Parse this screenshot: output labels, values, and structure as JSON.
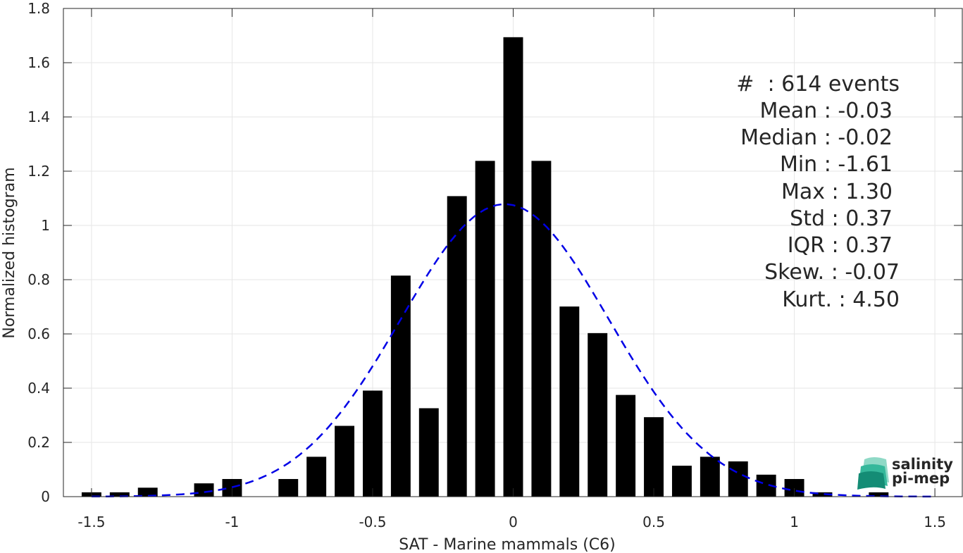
{
  "chart_data": {
    "type": "bar",
    "xlabel": "SAT - Marine mammals (C6)",
    "ylabel": "Normalized histogram",
    "xlim": [
      -1.6,
      1.6
    ],
    "ylim": [
      0,
      1.8
    ],
    "grid": true,
    "x_ticks": [
      -1.5,
      -1,
      -0.5,
      0,
      0.5,
      1,
      1.5
    ],
    "x_tick_labels": [
      "-1.5",
      "-1",
      "-0.5",
      "0",
      "0.5",
      "1",
      "1.5"
    ],
    "y_ticks": [
      0,
      0.2,
      0.4,
      0.6,
      0.8,
      1,
      1.2,
      1.4,
      1.6,
      1.8
    ],
    "y_tick_labels": [
      "0",
      "0.2",
      "0.4",
      "0.6",
      "0.8",
      "1",
      "1.2",
      "1.4",
      "1.6",
      "1.8"
    ],
    "bar_width": 0.07,
    "bar_color": "#000000",
    "bins": [
      -1.5,
      -1.4,
      -1.3,
      -1.2,
      -1.1,
      -1.0,
      -0.9,
      -0.8,
      -0.7,
      -0.6,
      -0.5,
      -0.4,
      -0.3,
      -0.2,
      -0.1,
      0.0,
      0.1,
      0.2,
      0.3,
      0.4,
      0.5,
      0.6,
      0.7,
      0.8,
      0.9,
      1.0,
      1.1,
      1.2,
      1.3
    ],
    "values": [
      0.016,
      0.016,
      0.033,
      0.0,
      0.049,
      0.065,
      0.0,
      0.065,
      0.147,
      0.261,
      0.391,
      0.815,
      0.326,
      1.108,
      1.238,
      1.694,
      1.238,
      0.701,
      0.603,
      0.375,
      0.293,
      0.114,
      0.147,
      0.13,
      0.081,
      0.065,
      0.016,
      0.0,
      0.016
    ],
    "fit_curve": {
      "type": "normal",
      "mean": -0.03,
      "std": 0.37,
      "x_range": [
        -1.5,
        1.5
      ],
      "color": "#0000e6",
      "style": "dashed"
    },
    "annotations": [
      "#  : 614 events",
      "Mean : -0.03",
      "Median : -0.02",
      "Min : -1.61",
      "Max : 1.30",
      "Std : 0.37",
      "IQR : 0.37",
      "Skew. : -0.07",
      "Kurt. : 4.50"
    ]
  },
  "logo": {
    "line1": "salinity",
    "line2": "pi-mep"
  }
}
